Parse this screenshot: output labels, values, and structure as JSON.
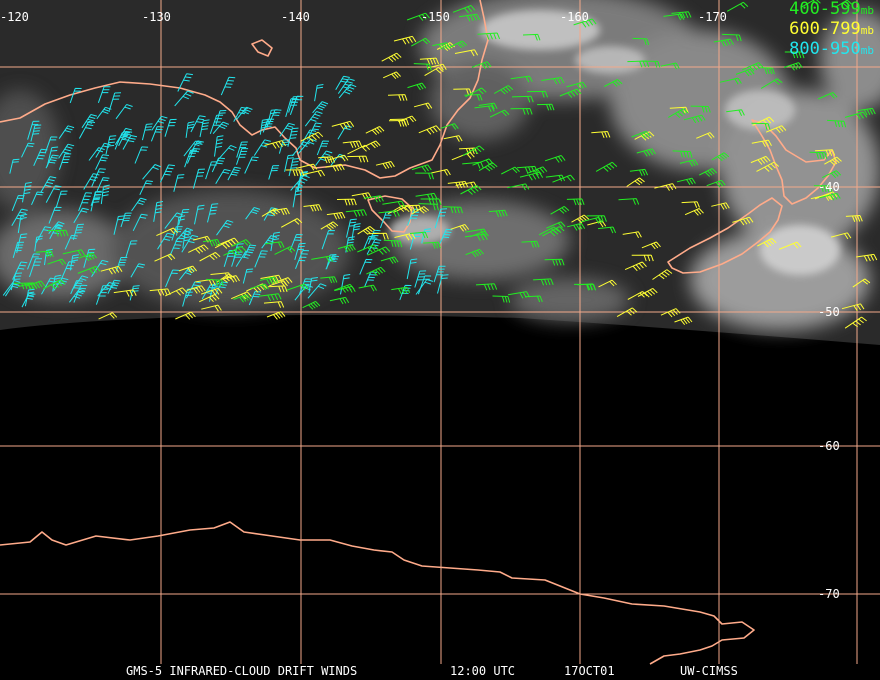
{
  "map": {
    "longitude_labels": [
      "-120",
      "-130",
      "-140",
      "-150",
      "-160",
      "-170"
    ],
    "latitude_labels": [
      "-40",
      "-50",
      "-60",
      "-70"
    ],
    "colors": {
      "grid": "#f3a98a",
      "coast": "#ffab8a",
      "band_400_599": "#22ee22",
      "band_600_799": "#ffff33",
      "band_800_950": "#22e6ee"
    }
  },
  "legend": {
    "items": [
      {
        "range": "400-599",
        "unit": "mb",
        "color": "#22ee22"
      },
      {
        "range": "600-799",
        "unit": "mb",
        "color": "#ffff33"
      },
      {
        "range": "800-950",
        "unit": "mb",
        "color": "#22e6ee"
      }
    ]
  },
  "footer": {
    "product": "GMS-5 INFRARED-CLOUD DRIFT WINDS",
    "time": "12:00 UTC",
    "date": "17OCT01",
    "source": "UW-CIMSS"
  }
}
